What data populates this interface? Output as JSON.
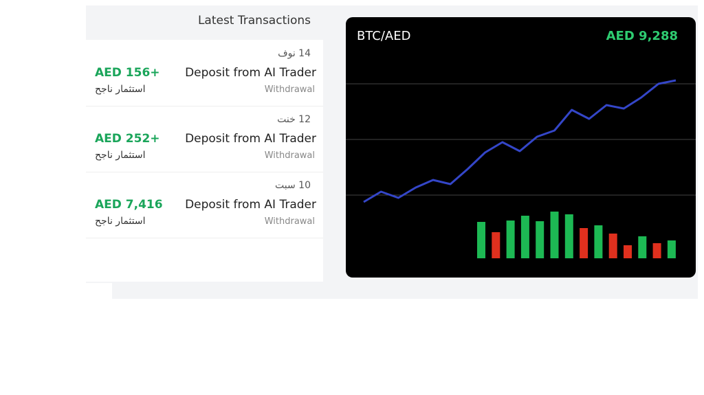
{
  "transactions": {
    "title": "Latest Transactions",
    "items": [
      {
        "date": "14 نوف",
        "title": "Deposit from AI Trader",
        "type": "Withdrawal",
        "amount": "AED 156+",
        "status": "استثمار ناجح"
      },
      {
        "date": "12 خنت",
        "title": "Deposit from AI Trader",
        "type": "Withdrawal",
        "amount": "AED 252+",
        "status": "استثمار ناجح"
      },
      {
        "date": "10 سبت",
        "title": "Deposit from AI Trader",
        "type": "Withdrawal",
        "amount": "AED 7,416",
        "status": "استثمار ناجح"
      }
    ]
  },
  "chart": {
    "type": "line",
    "title": "BTC/AED",
    "price": "AED 9,288",
    "color": "#3446c8",
    "ylim": [
      0,
      300
    ],
    "values": [
      106,
      121,
      112,
      127,
      138,
      132,
      154,
      178,
      193,
      180,
      201,
      210,
      240,
      227,
      247,
      242,
      258,
      278,
      283
    ],
    "bars": {
      "values": [
        53,
        38,
        55,
        62,
        54,
        68,
        64,
        44,
        48,
        36,
        19,
        32,
        22,
        26
      ],
      "colors": [
        "#1db954",
        "#e0301e",
        "#1db954",
        "#1db954",
        "#1db954",
        "#1db954",
        "#1db954",
        "#e0301e",
        "#1db954",
        "#e0301e",
        "#e0301e",
        "#1db954",
        "#e0301e",
        "#1db954"
      ]
    }
  }
}
